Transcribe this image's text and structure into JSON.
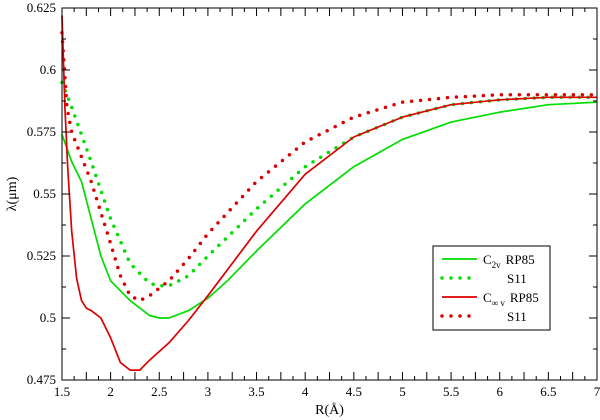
{
  "chart_data": {
    "type": "line",
    "title": "",
    "xlabel": "R(Å)",
    "ylabel": "λ(μm)",
    "xlim": [
      1.5,
      7
    ],
    "ylim": [
      0.475,
      0.625
    ],
    "x_ticks": [
      "1.5",
      "2",
      "2.5",
      "3",
      "3.5",
      "4",
      "4.5",
      "5",
      "5.5",
      "6",
      "6.5",
      "7"
    ],
    "y_ticks": [
      "0.475",
      "0.5",
      "0.525",
      "0.55",
      "0.575",
      "0.6",
      "0.625"
    ],
    "grid": false,
    "legend_position": "right",
    "series": [
      {
        "name": "C2v RP85",
        "legend": {
          "main": "C",
          "sub": "2v",
          "suffix": "RP85"
        },
        "color": "#00dd00",
        "style": "solid",
        "points": [
          [
            1.5,
            0.574
          ],
          [
            1.6,
            0.563
          ],
          [
            1.7,
            0.555
          ],
          [
            1.8,
            0.54
          ],
          [
            1.9,
            0.525
          ],
          [
            2.0,
            0.515
          ],
          [
            2.2,
            0.507
          ],
          [
            2.4,
            0.501
          ],
          [
            2.5,
            0.5
          ],
          [
            2.6,
            0.5
          ],
          [
            2.8,
            0.503
          ],
          [
            3.0,
            0.508
          ],
          [
            3.2,
            0.515
          ],
          [
            3.5,
            0.527
          ],
          [
            4.0,
            0.546
          ],
          [
            4.5,
            0.561
          ],
          [
            5.0,
            0.572
          ],
          [
            5.5,
            0.579
          ],
          [
            6.0,
            0.583
          ],
          [
            6.5,
            0.586
          ],
          [
            7.0,
            0.587
          ]
        ]
      },
      {
        "name": "S11",
        "legend": {
          "main": "",
          "sub": "",
          "suffix": "S11"
        },
        "color": "#00dd00",
        "style": "dotted",
        "points": [
          [
            1.5,
            0.595
          ],
          [
            1.6,
            0.585
          ],
          [
            1.8,
            0.563
          ],
          [
            2.0,
            0.54
          ],
          [
            2.2,
            0.522
          ],
          [
            2.4,
            0.514
          ],
          [
            2.5,
            0.513
          ],
          [
            2.6,
            0.513
          ],
          [
            2.8,
            0.517
          ],
          [
            3.0,
            0.525
          ],
          [
            3.5,
            0.544
          ],
          [
            4.0,
            0.561
          ],
          [
            4.5,
            0.573
          ],
          [
            5.0,
            0.581
          ],
          [
            5.5,
            0.586
          ],
          [
            6.0,
            0.588
          ],
          [
            6.5,
            0.589
          ],
          [
            7.0,
            0.589
          ]
        ]
      },
      {
        "name": "C∞v RP85",
        "legend": {
          "main": "C",
          "sub": "∞ v",
          "suffix": "RP85"
        },
        "color": "#dd0000",
        "style": "solid",
        "points": [
          [
            1.5,
            0.622
          ],
          [
            1.53,
            0.585
          ],
          [
            1.56,
            0.56
          ],
          [
            1.6,
            0.535
          ],
          [
            1.65,
            0.516
          ],
          [
            1.7,
            0.507
          ],
          [
            1.75,
            0.504
          ],
          [
            1.8,
            0.503
          ],
          [
            1.9,
            0.5
          ],
          [
            2.0,
            0.492
          ],
          [
            2.1,
            0.482
          ],
          [
            2.2,
            0.479
          ],
          [
            2.3,
            0.479
          ],
          [
            2.4,
            0.483
          ],
          [
            2.6,
            0.49
          ],
          [
            2.8,
            0.499
          ],
          [
            3.0,
            0.509
          ],
          [
            3.5,
            0.535
          ],
          [
            4.0,
            0.558
          ],
          [
            4.5,
            0.573
          ],
          [
            5.0,
            0.581
          ],
          [
            5.5,
            0.586
          ],
          [
            6.0,
            0.588
          ],
          [
            6.5,
            0.589
          ],
          [
            7.0,
            0.589
          ]
        ]
      },
      {
        "name": "S11",
        "legend": {
          "main": "",
          "sub": "",
          "suffix": "S11"
        },
        "color": "#dd0000",
        "style": "dotted",
        "points": [
          [
            1.5,
            0.615
          ],
          [
            1.55,
            0.585
          ],
          [
            1.6,
            0.575
          ],
          [
            1.8,
            0.555
          ],
          [
            2.0,
            0.53
          ],
          [
            2.1,
            0.517
          ],
          [
            2.2,
            0.509
          ],
          [
            2.3,
            0.507
          ],
          [
            2.4,
            0.509
          ],
          [
            2.6,
            0.515
          ],
          [
            2.8,
            0.524
          ],
          [
            3.0,
            0.534
          ],
          [
            3.5,
            0.555
          ],
          [
            4.0,
            0.571
          ],
          [
            4.5,
            0.581
          ],
          [
            5.0,
            0.587
          ],
          [
            5.5,
            0.589
          ],
          [
            6.0,
            0.59
          ],
          [
            6.5,
            0.59
          ],
          [
            7.0,
            0.59
          ]
        ]
      }
    ]
  }
}
